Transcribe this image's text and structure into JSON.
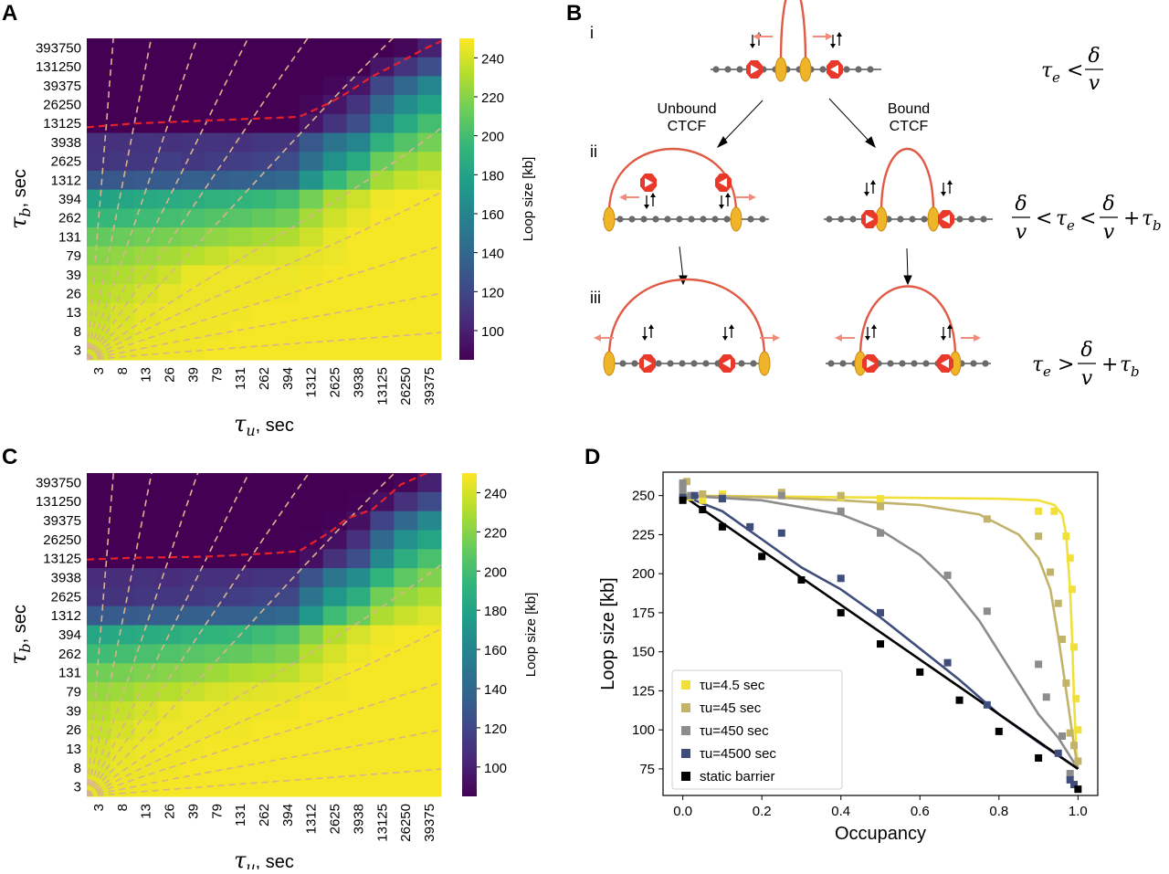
{
  "panels": {
    "a": "A",
    "b": "B",
    "c": "C",
    "d": "D"
  },
  "heatmap_labels": {
    "tau_symbol": "τ",
    "xsub": "u",
    "xunit": ", sec",
    "ysub": "b",
    "yunit": ", sec",
    "colorbar_label": "Loop size [kb]",
    "colorbar_ticks": [
      "240",
      "220",
      "200",
      "180",
      "160",
      "140",
      "120",
      "100"
    ]
  },
  "schematic": {
    "steps": [
      "i",
      "ii",
      "iii"
    ],
    "unbound_line1": "Unbound",
    "unbound_line2": "CTCF",
    "bound_line1": "Bound",
    "bound_line2": "CTCF",
    "tau": "τ",
    "e": "e",
    "b": "b",
    "delta": "δ",
    "v": "v",
    "lt": "<",
    "gt": ">",
    "plus": "+"
  },
  "chart_data": [
    {
      "type": "heatmap",
      "panel": "A",
      "xlabel": "τu, sec",
      "ylabel": "τb, sec",
      "x_ticks": [
        "3",
        "8",
        "13",
        "26",
        "39",
        "79",
        "131",
        "262",
        "394",
        "1312",
        "2625",
        "3938",
        "13125",
        "26250",
        "39375"
      ],
      "y_ticks": [
        "393750",
        "131250",
        "39375",
        "26250",
        "13125",
        "3938",
        "2625",
        "1312",
        "394",
        "262",
        "131",
        "79",
        "39",
        "26",
        "13",
        "8",
        "3"
      ],
      "colorbar": {
        "label": "Loop size [kb]",
        "min": 85,
        "max": 250,
        "ticks": [
          100,
          120,
          140,
          160,
          180,
          200,
          220,
          240
        ],
        "colormap": "viridis"
      },
      "values": [
        [
          85,
          85,
          85,
          85,
          85,
          85,
          85,
          85,
          85,
          85,
          85,
          85,
          85,
          88,
          100
        ],
        [
          85,
          85,
          85,
          85,
          85,
          85,
          85,
          85,
          85,
          85,
          85,
          85,
          95,
          110,
          125
        ],
        [
          85,
          85,
          85,
          85,
          85,
          85,
          85,
          85,
          85,
          85,
          88,
          95,
          120,
          140,
          160
        ],
        [
          85,
          85,
          85,
          85,
          85,
          85,
          85,
          85,
          85,
          88,
          95,
          110,
          140,
          165,
          180
        ],
        [
          85,
          85,
          85,
          85,
          85,
          85,
          85,
          85,
          85,
          95,
          110,
          125,
          160,
          185,
          200
        ],
        [
          108,
          108,
          110,
          108,
          110,
          110,
          108,
          112,
          112,
          130,
          148,
          160,
          190,
          205,
          215
        ],
        [
          110,
          112,
          112,
          115,
          112,
          114,
          115,
          118,
          122,
          145,
          168,
          185,
          212,
          222,
          228
        ],
        [
          130,
          130,
          132,
          132,
          135,
          134,
          136,
          138,
          140,
          170,
          195,
          210,
          228,
          235,
          240
        ],
        [
          180,
          182,
          185,
          186,
          188,
          190,
          192,
          195,
          200,
          215,
          230,
          238,
          246,
          248,
          248
        ],
        [
          195,
          196,
          198,
          200,
          202,
          205,
          206,
          210,
          214,
          228,
          238,
          244,
          248,
          248,
          248
        ],
        [
          210,
          212,
          214,
          216,
          218,
          222,
          225,
          228,
          230,
          238,
          245,
          248,
          248,
          248,
          248
        ],
        [
          220,
          222,
          225,
          228,
          232,
          236,
          240,
          240,
          242,
          244,
          246,
          248,
          248,
          248,
          248
        ],
        [
          228,
          230,
          234,
          238,
          245,
          246,
          246,
          246,
          246,
          247,
          248,
          248,
          248,
          248,
          248
        ],
        [
          232,
          235,
          240,
          244,
          246,
          246,
          247,
          247,
          247,
          248,
          248,
          248,
          248,
          248,
          248
        ],
        [
          236,
          240,
          244,
          246,
          246,
          247,
          247,
          248,
          248,
          248,
          248,
          248,
          248,
          248,
          248
        ],
        [
          238,
          242,
          245,
          246,
          247,
          247,
          248,
          248,
          248,
          248,
          248,
          248,
          248,
          248,
          248
        ],
        [
          240,
          244,
          246,
          247,
          247,
          248,
          248,
          248,
          248,
          248,
          248,
          248,
          248,
          248,
          248
        ]
      ]
    },
    {
      "type": "heatmap",
      "panel": "C",
      "xlabel": "τu, sec",
      "ylabel": "τb, sec",
      "x_ticks": [
        "3",
        "8",
        "13",
        "26",
        "39",
        "79",
        "131",
        "262",
        "394",
        "1312",
        "2625",
        "3938",
        "13125",
        "26250",
        "39375"
      ],
      "y_ticks": [
        "393750",
        "131250",
        "39375",
        "26250",
        "13125",
        "3938",
        "2625",
        "1312",
        "394",
        "262",
        "131",
        "79",
        "39",
        "26",
        "13",
        "8",
        "3"
      ],
      "colorbar": {
        "label": "Loop size [kb]",
        "min": 85,
        "max": 250,
        "ticks": [
          100,
          120,
          140,
          160,
          180,
          200,
          220,
          240
        ],
        "colormap": "viridis"
      },
      "values": [
        [
          85,
          85,
          85,
          85,
          85,
          85,
          85,
          85,
          85,
          85,
          85,
          85,
          85,
          88,
          100
        ],
        [
          85,
          85,
          85,
          85,
          85,
          85,
          85,
          85,
          85,
          85,
          85,
          86,
          92,
          108,
          122
        ],
        [
          85,
          85,
          85,
          85,
          85,
          85,
          85,
          85,
          85,
          85,
          86,
          92,
          118,
          140,
          162
        ],
        [
          85,
          85,
          85,
          85,
          85,
          85,
          85,
          85,
          85,
          86,
          92,
          108,
          140,
          168,
          182
        ],
        [
          85,
          85,
          85,
          85,
          85,
          85,
          85,
          85,
          85,
          92,
          108,
          125,
          162,
          188,
          202
        ],
        [
          106,
          106,
          108,
          106,
          108,
          108,
          107,
          110,
          110,
          128,
          150,
          165,
          192,
          208,
          218
        ],
        [
          110,
          110,
          112,
          112,
          112,
          114,
          115,
          118,
          120,
          148,
          172,
          188,
          214,
          224,
          230
        ],
        [
          132,
          132,
          133,
          134,
          135,
          136,
          136,
          138,
          140,
          172,
          198,
          212,
          230,
          237,
          242
        ],
        [
          182,
          184,
          186,
          188,
          190,
          192,
          194,
          198,
          202,
          218,
          232,
          240,
          246,
          248,
          248
        ],
        [
          198,
          200,
          202,
          204,
          206,
          208,
          210,
          214,
          218,
          232,
          240,
          246,
          248,
          248,
          248
        ],
        [
          214,
          216,
          218,
          220,
          222,
          226,
          230,
          232,
          234,
          240,
          246,
          248,
          248,
          248,
          248
        ],
        [
          224,
          226,
          230,
          232,
          236,
          240,
          242,
          243,
          244,
          246,
          247,
          248,
          248,
          248,
          248
        ],
        [
          232,
          236,
          240,
          244,
          246,
          246,
          247,
          247,
          247,
          248,
          248,
          248,
          248,
          248,
          248
        ],
        [
          236,
          240,
          244,
          246,
          246,
          247,
          247,
          248,
          248,
          248,
          248,
          248,
          248,
          248,
          248
        ],
        [
          240,
          244,
          246,
          247,
          247,
          248,
          248,
          248,
          248,
          248,
          248,
          248,
          248,
          248,
          248
        ],
        [
          242,
          245,
          246,
          247,
          248,
          248,
          248,
          248,
          248,
          248,
          248,
          248,
          248,
          248,
          248
        ],
        [
          244,
          246,
          247,
          248,
          248,
          248,
          248,
          248,
          248,
          248,
          248,
          248,
          248,
          248,
          248
        ]
      ]
    },
    {
      "type": "scatter",
      "panel": "D",
      "xlabel": "Occupancy",
      "ylabel": "Loop size [kb]",
      "xlim": [
        -0.05,
        1.05
      ],
      "ylim": [
        58,
        265
      ],
      "x_ticks": [
        "0.0",
        "0.2",
        "0.4",
        "0.6",
        "0.8",
        "1.0"
      ],
      "y_ticks": [
        "75",
        "100",
        "125",
        "150",
        "175",
        "200",
        "225",
        "250"
      ],
      "legend_position": "bottom-left",
      "series": [
        {
          "name": "τu=4.5 sec",
          "color": "#f2e03a",
          "x": [
            0,
            0,
            0,
            0.02,
            0.05,
            0.1,
            0.25,
            0.4,
            0.5,
            0.9,
            0.94,
            0.97,
            0.98,
            0.985,
            0.99,
            0.995,
            1.0
          ],
          "y": [
            248,
            252,
            255,
            249,
            247,
            251,
            250,
            249,
            248,
            240,
            240,
            224,
            210,
            190,
            153,
            120,
            100
          ],
          "fit_x": [
            0,
            0.2,
            0.4,
            0.6,
            0.8,
            0.9,
            0.94,
            0.96,
            0.97,
            0.98,
            0.985,
            0.99,
            0.995,
            1.0
          ],
          "fit_y": [
            250,
            249.5,
            249,
            248.5,
            248,
            247,
            244,
            238,
            225,
            190,
            160,
            120,
            90,
            75
          ]
        },
        {
          "name": "τu=45 sec",
          "color": "#c2b36b",
          "x": [
            0,
            0,
            0.01,
            0.05,
            0.1,
            0.25,
            0.4,
            0.5,
            0.77,
            0.9,
            0.93,
            0.95,
            0.96,
            0.97,
            0.98,
            0.99,
            1.0
          ],
          "y": [
            250,
            256,
            259,
            251,
            249,
            252,
            250,
            243,
            235,
            224,
            201,
            181,
            158,
            130,
            98,
            90,
            80
          ],
          "fit_x": [
            0,
            0.2,
            0.4,
            0.6,
            0.75,
            0.85,
            0.9,
            0.93,
            0.95,
            0.97,
            0.99,
            1.0
          ],
          "fit_y": [
            250,
            249,
            247,
            244,
            238,
            225,
            210,
            190,
            160,
            125,
            90,
            75
          ],
          "y_note": ""
        },
        {
          "name": "τu=450 sec",
          "color": "#8c8c8c",
          "x": [
            0,
            0,
            0.02,
            0.1,
            0.25,
            0.4,
            0.5,
            0.67,
            0.77,
            0.9,
            0.92,
            0.96,
            0.98
          ],
          "y": [
            254,
            258,
            250,
            248,
            250,
            240,
            226,
            199,
            176,
            142,
            121,
            96,
            72
          ],
          "fit_x": [
            0,
            0.2,
            0.4,
            0.5,
            0.6,
            0.67,
            0.75,
            0.85,
            0.9,
            0.95,
            1.0
          ],
          "fit_y": [
            250,
            247,
            238,
            228,
            212,
            195,
            170,
            130,
            110,
            95,
            75
          ]
        },
        {
          "name": "τu=4500 sec",
          "color": "#3f4d7a",
          "x": [
            0,
            0.03,
            0.1,
            0.17,
            0.25,
            0.4,
            0.5,
            0.67,
            0.77,
            0.95,
            0.98,
            0.99
          ],
          "y": [
            249,
            250,
            248,
            230,
            226,
            197,
            175,
            143,
            116,
            85,
            68,
            65
          ],
          "fit_x": [
            0,
            0.1,
            0.2,
            0.3,
            0.4,
            0.5,
            0.6,
            0.7,
            0.8,
            0.9,
            1.0
          ],
          "fit_y": [
            250,
            240,
            222,
            204,
            190,
            172,
            152,
            132,
            110,
            92,
            75
          ]
        },
        {
          "name": "static barrier",
          "color": "#000000",
          "x": [
            0,
            0.05,
            0.1,
            0.2,
            0.3,
            0.4,
            0.5,
            0.6,
            0.7,
            0.8,
            0.9,
            1.0
          ],
          "y": [
            247,
            241,
            230,
            211,
            196,
            175,
            155,
            137,
            119,
            99,
            82,
            62
          ],
          "fit_x": [
            0,
            1.0
          ],
          "fit_y": [
            250,
            75
          ]
        }
      ]
    }
  ]
}
